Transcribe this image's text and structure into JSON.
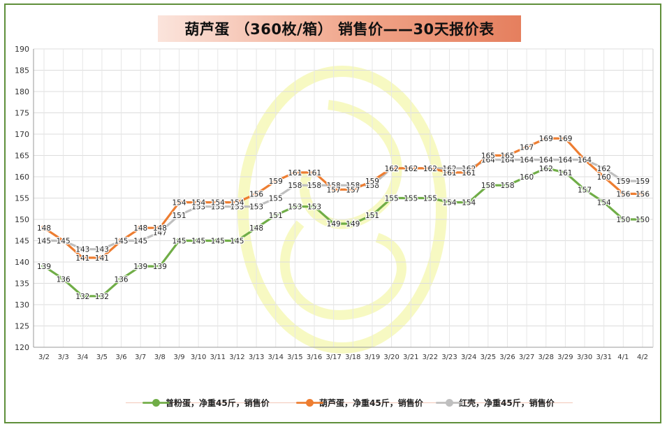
{
  "title": "葫芦蛋 （360枚/箱） 销售价——30天报价表",
  "chart_data": {
    "type": "line",
    "title": "葫芦蛋 （360枚/箱） 销售价——30天报价表",
    "xlabel": "",
    "ylabel": "",
    "ylim": [
      120,
      190
    ],
    "yticks": [
      120,
      125,
      130,
      135,
      140,
      145,
      150,
      155,
      160,
      165,
      170,
      175,
      180,
      185,
      190
    ],
    "grid": true,
    "legend_position": "bottom",
    "categories": [
      "3/2",
      "3/3",
      "3/4",
      "3/5",
      "3/6",
      "3/7",
      "3/8",
      "3/9",
      "3/10",
      "3/11",
      "3/12",
      "3/13",
      "3/14",
      "3/15",
      "3/16",
      "3/17",
      "3/18",
      "3/19",
      "3/20",
      "3/21",
      "3/22",
      "3/23",
      "3/24",
      "3/25",
      "3/26",
      "3/27",
      "3/28",
      "3/29",
      "3/30",
      "3/31",
      "4/1",
      "4/2"
    ],
    "series": [
      {
        "name": "普粉蛋，净重45斤，销售价",
        "color": "#70ad47",
        "values": [
          139,
          136,
          132,
          132,
          136,
          139,
          139,
          145,
          145,
          145,
          145,
          148,
          151,
          153,
          153,
          149,
          149,
          151,
          155,
          155,
          155,
          154,
          154,
          158,
          158,
          160,
          162,
          161,
          157,
          154,
          150,
          150
        ]
      },
      {
        "name": "葫芦蛋，净重45斤，销售价",
        "color": "#ed7d31",
        "values": [
          148,
          145,
          141,
          141,
          145,
          148,
          148,
          154,
          154,
          154,
          154,
          156,
          159,
          161,
          161,
          157,
          157,
          159,
          162,
          162,
          162,
          161,
          161,
          165,
          165,
          167,
          169,
          169,
          164,
          160,
          156,
          156
        ]
      },
      {
        "name": "红壳，净重45斤，销售价",
        "color": "#bfbfbf",
        "values": [
          145,
          145,
          143,
          143,
          145,
          145,
          147,
          151,
          153,
          153,
          153,
          153,
          155,
          158,
          158,
          158,
          158,
          158,
          162,
          162,
          162,
          162,
          162,
          164,
          164,
          164,
          164,
          164,
          164,
          162,
          159,
          159
        ]
      }
    ]
  }
}
